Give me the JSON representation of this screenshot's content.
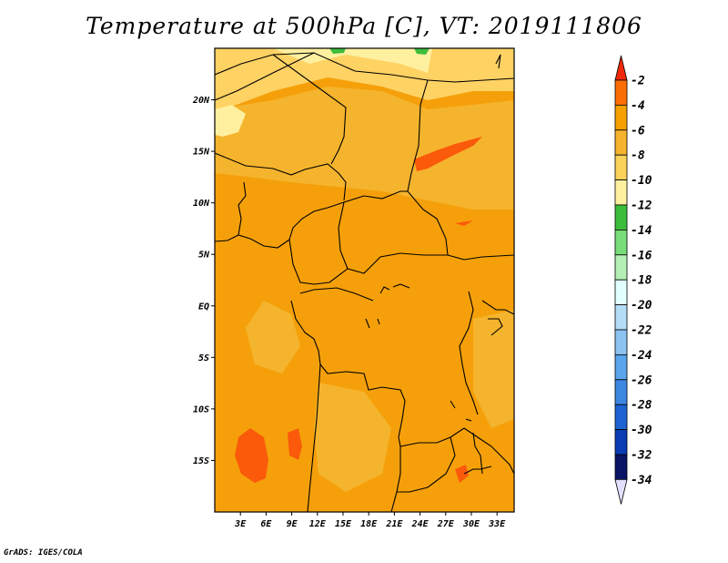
{
  "title": "Temperature at 500hPa [C], VT: 2019111806",
  "credit": "GrADS: IGES/COLA",
  "map": {
    "lat_range": [
      -20,
      25
    ],
    "lon_range": [
      0,
      35
    ],
    "lat_ticks": [
      {
        "value": 20,
        "label": "20N"
      },
      {
        "value": 15,
        "label": "15N"
      },
      {
        "value": 10,
        "label": "10N"
      },
      {
        "value": 5,
        "label": "5N"
      },
      {
        "value": 0,
        "label": "EQ"
      },
      {
        "value": -5,
        "label": "5S"
      },
      {
        "value": -10,
        "label": "10S"
      },
      {
        "value": -15,
        "label": "15S"
      }
    ],
    "lon_ticks": [
      {
        "value": 3,
        "label": "3E"
      },
      {
        "value": 6,
        "label": "6E"
      },
      {
        "value": 9,
        "label": "9E"
      },
      {
        "value": 12,
        "label": "12E"
      },
      {
        "value": 15,
        "label": "15E"
      },
      {
        "value": 18,
        "label": "18E"
      },
      {
        "value": 21,
        "label": "21E"
      },
      {
        "value": 24,
        "label": "24E"
      },
      {
        "value": 27,
        "label": "27E"
      },
      {
        "value": 30,
        "label": "30E"
      },
      {
        "value": 33,
        "label": "33E"
      }
    ],
    "field_colors": {
      "warmest": "#fa5a0a",
      "warm": "#f5a00a",
      "mid": "#f5b42d",
      "cool": "#ffd264",
      "coolest": "#fff0a0",
      "green": "#3cbe3c"
    }
  },
  "colorbar": {
    "labels": [
      "-2",
      "-4",
      "-6",
      "-8",
      "-10",
      "-12",
      "-14",
      "-16",
      "-18",
      "-20",
      "-22",
      "-24",
      "-26",
      "-28",
      "-30",
      "-32",
      "-34"
    ],
    "colors": [
      "#f0280a",
      "#fa6e05",
      "#f5a000",
      "#f5b42d",
      "#fad25a",
      "#fff0a0",
      "#3cbe3c",
      "#78dc78",
      "#b4f0b4",
      "#e1ffff",
      "#b4dcf5",
      "#8cc3f0",
      "#5aa5eb",
      "#3c87e1",
      "#1e64d2",
      "#0a3cb4",
      "#0a1464",
      "#e1e1ff"
    ]
  }
}
